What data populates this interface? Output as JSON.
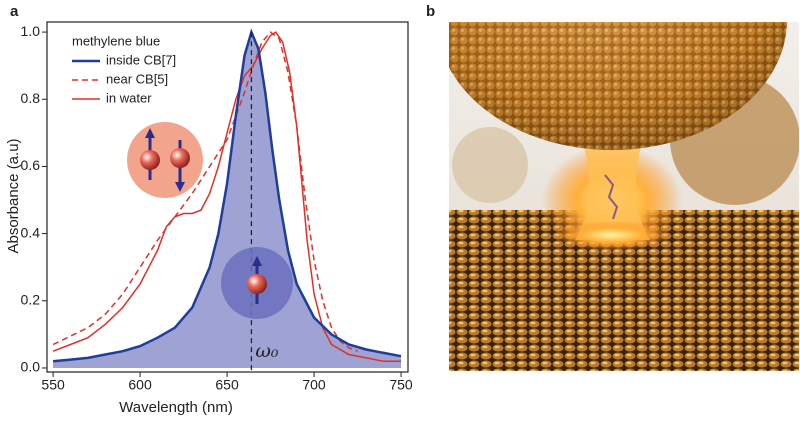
{
  "panels": {
    "a": "a",
    "b": "b"
  },
  "chart_data": {
    "type": "line",
    "x_label": "Wavelength (nm)",
    "y_label": "Absorbance (a.u)",
    "legend_title": "methylene blue",
    "annotation": "ω₀",
    "xlim": [
      546.5,
      754
    ],
    "ylim": [
      -0.012,
      1.03
    ],
    "xticks": [
      550,
      600,
      650,
      700,
      750
    ],
    "yticks": [
      {
        "value": 0,
        "label": "0.0"
      },
      0.2,
      0.4,
      0.6,
      0.8,
      {
        "value": 1,
        "label": "1.0"
      }
    ],
    "series": [
      {
        "name": "inside CB[7]",
        "color": "#1f3d99",
        "dash": false,
        "fill": "#9ea3d3",
        "x": [
          550,
          560,
          570,
          580,
          590,
          600,
          610,
          620,
          630,
          640,
          645,
          650,
          655,
          660,
          664,
          668,
          672,
          676,
          680,
          685,
          690,
          700,
          710,
          720,
          730,
          740,
          750
        ],
        "values": [
          0.02,
          0.025,
          0.03,
          0.04,
          0.05,
          0.065,
          0.09,
          0.12,
          0.18,
          0.3,
          0.4,
          0.55,
          0.75,
          0.93,
          1.0,
          0.95,
          0.82,
          0.65,
          0.5,
          0.35,
          0.25,
          0.15,
          0.1,
          0.07,
          0.055,
          0.045,
          0.035
        ]
      },
      {
        "name": "near CB[5]",
        "color": "#e0302a",
        "dash": true,
        "x": [
          550,
          560,
          570,
          580,
          590,
          600,
          610,
          620,
          630,
          640,
          650,
          660,
          665,
          670,
          675,
          680,
          685,
          690,
          695,
          700,
          705,
          710,
          715,
          720,
          725
        ],
        "values": [
          0.07,
          0.095,
          0.12,
          0.16,
          0.22,
          0.3,
          0.38,
          0.45,
          0.52,
          0.6,
          0.68,
          0.82,
          0.9,
          0.97,
          1.0,
          0.98,
          0.88,
          0.72,
          0.5,
          0.32,
          0.2,
          0.12,
          0.08,
          0.06,
          0.05
        ]
      },
      {
        "name": "in water",
        "color": "#e0302a",
        "dash": false,
        "x": [
          550,
          560,
          570,
          580,
          590,
          600,
          610,
          615,
          620,
          625,
          630,
          635,
          640,
          645,
          650,
          655,
          660,
          665,
          670,
          675,
          678,
          682,
          686,
          690,
          693,
          696,
          700,
          705,
          710,
          720,
          730,
          740,
          750
        ],
        "values": [
          0.05,
          0.07,
          0.09,
          0.13,
          0.18,
          0.25,
          0.35,
          0.42,
          0.45,
          0.46,
          0.46,
          0.47,
          0.52,
          0.6,
          0.7,
          0.8,
          0.87,
          0.9,
          0.95,
          0.99,
          1.0,
          0.97,
          0.88,
          0.72,
          0.55,
          0.38,
          0.22,
          0.12,
          0.07,
          0.04,
          0.03,
          0.02,
          0.02
        ]
      }
    ]
  }
}
